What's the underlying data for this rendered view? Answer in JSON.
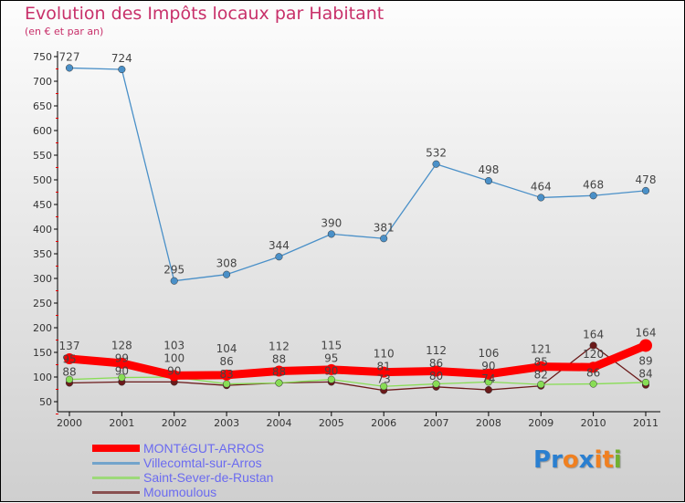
{
  "chart_data": {
    "type": "line",
    "title": "Evolution des Impôts locaux par Habitant",
    "subtitle": "(en € et par an)",
    "x": [
      "2000",
      "2001",
      "2002",
      "2003",
      "2004",
      "2005",
      "2006",
      "2007",
      "2008",
      "2009",
      "2010",
      "2011"
    ],
    "ylim": [
      50,
      750
    ],
    "yticks": [
      50,
      100,
      150,
      200,
      250,
      300,
      350,
      400,
      450,
      500,
      550,
      600,
      650,
      700,
      750
    ],
    "legend_position": "bottom-left",
    "series": [
      {
        "name": "MONTéGUT-ARROS",
        "color": "#ff0000",
        "values": [
          137,
          128,
          103,
          104,
          112,
          115,
          110,
          112,
          106,
          121,
          120,
          164
        ]
      },
      {
        "name": "Villecomtal-sur-Arros",
        "color": "#4a90c8",
        "values": [
          727,
          724,
          295,
          308,
          344,
          390,
          381,
          532,
          498,
          464,
          468,
          478
        ]
      },
      {
        "name": "Saint-Sever-de-Rustan",
        "color": "#88dd55",
        "values": [
          95,
          99,
          100,
          86,
          88,
          95,
          81,
          86,
          90,
          85,
          86,
          89
        ]
      },
      {
        "name": "Moumoulous",
        "color": "#6b1a1a",
        "values": [
          88,
          90,
          90,
          83,
          88,
          90,
          73,
          80,
          74,
          82,
          164,
          84
        ]
      }
    ]
  },
  "logo": {
    "text": "Proxiti",
    "letters": [
      "P",
      "r",
      "o",
      "x",
      "i",
      "t",
      "i"
    ],
    "colors": [
      "#2a7fd0",
      "#2a7fd0",
      "#f08020",
      "#2a7fd0",
      "#f08020",
      "#f08020",
      "#70b030"
    ]
  }
}
